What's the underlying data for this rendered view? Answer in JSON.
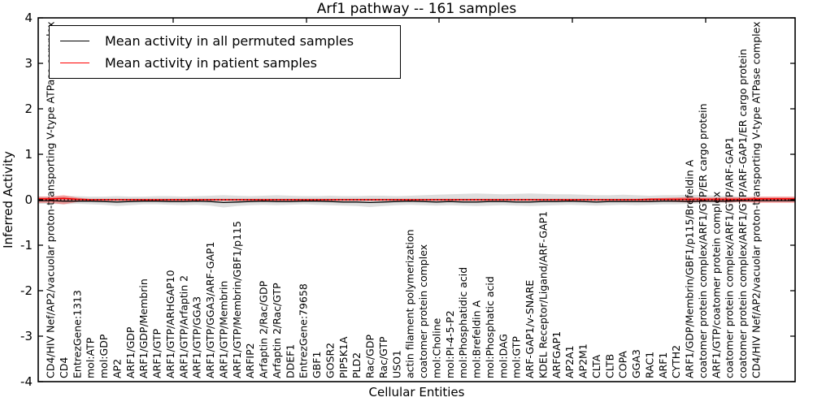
{
  "chart_data": {
    "type": "line",
    "title": "Arf1 pathway -- 161 samples",
    "xlabel": "Cellular Entities",
    "ylabel": "Inferred Activity",
    "ylim": [
      -4,
      4
    ],
    "yticks": [
      4,
      3,
      2,
      1,
      0,
      -1,
      -2,
      -3,
      -4
    ],
    "grid": false,
    "legend_position": "upper left",
    "legend": [
      {
        "label": "Mean activity in all permuted samples",
        "color": "#000000"
      },
      {
        "label": "Mean activity in patient samples",
        "color": "#ff0000"
      }
    ],
    "categories": [
      "CD4/HIV Nef/AP2/vacuolar proton-transporting V-type ATPase complex",
      "CD4",
      "EntrezGene:1313",
      "mol:ATP",
      "mol:GDP",
      "AP2",
      "ARF1/GDP",
      "ARF1/GDP/Membrin",
      "ARF1/GTP",
      "ARF1/GTP/ARHGAP10",
      "ARF1/GTP/Arfaptin 2",
      "ARF1/GTP/GGA3",
      "ARF1/GTP/GGA3/ARF-GAP1",
      "ARF1/GTP/Membrin",
      "ARF1/GTP/Membrin/GBF1/p115",
      "ARFIP2",
      "Arfaptin 2/Rac/GDP",
      "Arfaptin 2/Rac/GTP",
      "DDEF1",
      "EntrezGene:79658",
      "GBF1",
      "GOSR2",
      "PIP5K1A",
      "PLD2",
      "Rac/GDP",
      "Rac/GTP",
      "USO1",
      "actin filament polymerization",
      "coatomer protein complex",
      "mol:Choline",
      "mol:PI-4-5-P2",
      "mol:Phosphatidic acid",
      "mol:Brefeldin A",
      "mol:Phosphatic acid",
      "mol:DAG",
      "mol:GTP",
      "ARF-GAP1/v-SNARE",
      "KDEL Receptor/Ligand/ARF-GAP1",
      "ARFGAP1",
      "AP2A1",
      "AP2M1",
      "CLTA",
      "CLTB",
      "COPA",
      "GGA3",
      "RAC1",
      "ARF1",
      "CYTH2",
      "ARF1/GDP/Membrin/GBF1/p115/Brefeldin A",
      "coatomer protein complex/ARF1/GTP/ER cargo protein",
      "ARF1/GTP/coatomer protein complex",
      "coatomer protein complex/ARF1/GTP/ARF-GAP1",
      "coatomer protein complex/ARF1/GTP/ARF-GAP1/ER cargo protein",
      "CD4/HIV Nef/AP2/vacuolar proton-transporting V-type ATPase complex"
    ],
    "series": [
      {
        "name": "mean-activity-permuted-line",
        "color": "#000000",
        "values": [
          -0.02,
          -0.03,
          -0.03,
          -0.03,
          -0.04,
          -0.05,
          -0.04,
          -0.03,
          -0.03,
          -0.04,
          -0.04,
          -0.03,
          -0.04,
          -0.06,
          -0.05,
          -0.04,
          -0.03,
          -0.04,
          -0.04,
          -0.03,
          -0.03,
          -0.04,
          -0.05,
          -0.05,
          -0.06,
          -0.05,
          -0.04,
          -0.03,
          -0.04,
          -0.05,
          -0.04,
          -0.05,
          -0.05,
          -0.04,
          -0.04,
          -0.05,
          -0.05,
          -0.04,
          -0.04,
          -0.03,
          -0.04,
          -0.05,
          -0.04,
          -0.04,
          -0.04,
          -0.04,
          -0.03,
          -0.03,
          -0.04,
          -0.03,
          -0.03,
          -0.03,
          -0.02,
          -0.02
        ]
      },
      {
        "name": "mean-activity-patient-line",
        "color": "#ff0000",
        "values": [
          0.02,
          0.03,
          0.01,
          0.0,
          0.0,
          0.0,
          0.0,
          0.0,
          0.0,
          0.0,
          0.0,
          0.0,
          0.0,
          0.0,
          0.0,
          0.0,
          0.0,
          0.0,
          0.0,
          0.0,
          0.0,
          0.0,
          0.0,
          0.0,
          0.0,
          0.0,
          0.0,
          0.0,
          0.0,
          0.0,
          0.0,
          0.0,
          0.0,
          0.0,
          0.0,
          0.0,
          0.0,
          0.0,
          0.0,
          0.0,
          0.0,
          0.0,
          0.0,
          0.0,
          0.0,
          0.01,
          0.01,
          0.01,
          0.01,
          0.01,
          0.01,
          0.01,
          0.01,
          0.02
        ]
      }
    ],
    "bands": [
      {
        "name": "permuted-activity-band",
        "color": "#000000",
        "opacity": 0.13,
        "upper": [
          0.07,
          0.08,
          0.08,
          0.07,
          0.07,
          0.08,
          0.07,
          0.07,
          0.08,
          0.08,
          0.07,
          0.08,
          0.09,
          0.1,
          0.09,
          0.08,
          0.09,
          0.1,
          0.09,
          0.08,
          0.08,
          0.09,
          0.08,
          0.08,
          0.09,
          0.09,
          0.08,
          0.09,
          0.1,
          0.11,
          0.12,
          0.13,
          0.14,
          0.13,
          0.12,
          0.13,
          0.14,
          0.13,
          0.12,
          0.12,
          0.11,
          0.1,
          0.1,
          0.11,
          0.1,
          0.09,
          0.1,
          0.1,
          0.11,
          0.1,
          0.09,
          0.08,
          0.07,
          0.06
        ],
        "lower": [
          -0.09,
          -0.1,
          -0.09,
          -0.1,
          -0.11,
          -0.14,
          -0.12,
          -0.1,
          -0.1,
          -0.11,
          -0.12,
          -0.11,
          -0.13,
          -0.17,
          -0.14,
          -0.12,
          -0.11,
          -0.12,
          -0.11,
          -0.1,
          -0.11,
          -0.12,
          -0.13,
          -0.14,
          -0.16,
          -0.14,
          -0.12,
          -0.11,
          -0.12,
          -0.13,
          -0.12,
          -0.13,
          -0.14,
          -0.13,
          -0.12,
          -0.13,
          -0.14,
          -0.13,
          -0.12,
          -0.11,
          -0.12,
          -0.13,
          -0.12,
          -0.11,
          -0.12,
          -0.11,
          -0.1,
          -0.1,
          -0.09,
          -0.08,
          -0.08,
          -0.07,
          -0.06,
          -0.05
        ]
      },
      {
        "name": "patient-activity-band",
        "color": "#ff0000",
        "opacity": 0.32,
        "upper": [
          0.07,
          0.1,
          0.05,
          0.02,
          0.02,
          0.02,
          0.02,
          0.02,
          0.02,
          0.02,
          0.02,
          0.02,
          0.02,
          0.02,
          0.02,
          0.02,
          0.02,
          0.02,
          0.02,
          0.02,
          0.02,
          0.02,
          0.02,
          0.02,
          0.02,
          0.02,
          0.02,
          0.02,
          0.02,
          0.02,
          0.02,
          0.02,
          0.02,
          0.02,
          0.02,
          0.02,
          0.02,
          0.02,
          0.02,
          0.02,
          0.02,
          0.02,
          0.02,
          0.02,
          0.02,
          0.03,
          0.04,
          0.05,
          0.06,
          0.05,
          0.05,
          0.06,
          0.05,
          0.07
        ],
        "lower": [
          -0.07,
          -0.1,
          -0.05,
          -0.02,
          -0.02,
          -0.02,
          -0.02,
          -0.02,
          -0.02,
          -0.02,
          -0.02,
          -0.02,
          -0.02,
          -0.02,
          -0.02,
          -0.02,
          -0.02,
          -0.02,
          -0.02,
          -0.02,
          -0.02,
          -0.02,
          -0.02,
          -0.02,
          -0.02,
          -0.02,
          -0.02,
          -0.02,
          -0.02,
          -0.02,
          -0.02,
          -0.02,
          -0.02,
          -0.02,
          -0.02,
          -0.02,
          -0.02,
          -0.02,
          -0.02,
          -0.02,
          -0.02,
          -0.02,
          -0.02,
          -0.02,
          -0.02,
          -0.03,
          -0.04,
          -0.05,
          -0.06,
          -0.05,
          -0.05,
          -0.06,
          -0.05,
          -0.07
        ]
      }
    ],
    "reference_lines": [
      {
        "y": 0,
        "style": "dotted",
        "color": "#000000"
      }
    ]
  }
}
